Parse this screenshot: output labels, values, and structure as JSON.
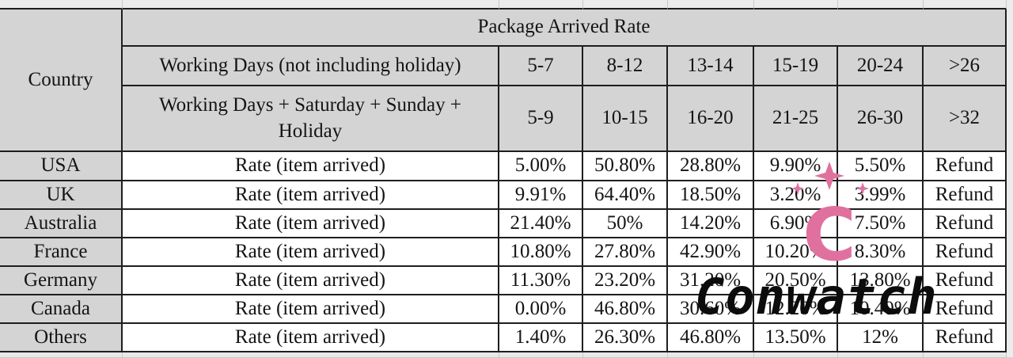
{
  "table": {
    "title": "Package Arrived Rate",
    "country_header": "Country",
    "working_days_label": "Working Days (not including holiday)",
    "all_days_label": "Working Days + Saturday + Sunday + Holiday",
    "working_day_ranges": [
      "5-7",
      "8-12",
      "13-14",
      "15-19",
      "20-24",
      ">26"
    ],
    "all_day_ranges": [
      "5-9",
      "10-15",
      "16-20",
      "21-25",
      "26-30",
      ">32"
    ],
    "rows": [
      {
        "country": "USA",
        "metric": "Rate (item arrived)",
        "rates": [
          "5.00%",
          "50.80%",
          "28.80%",
          "9.90%",
          "5.50%",
          "Refund"
        ]
      },
      {
        "country": "UK",
        "metric": "Rate (item arrived)",
        "rates": [
          "9.91%",
          "64.40%",
          "18.50%",
          "3.20%",
          "3.99%",
          "Refund"
        ]
      },
      {
        "country": "Australia",
        "metric": "Rate (item arrived)",
        "rates": [
          "21.40%",
          "50%",
          "14.20%",
          "6.90%",
          "7.50%",
          "Refund"
        ]
      },
      {
        "country": "France",
        "metric": "Rate (item arrived)",
        "rates": [
          "10.80%",
          "27.80%",
          "42.90%",
          "10.20%",
          "8.30%",
          "Refund"
        ]
      },
      {
        "country": "Germany",
        "metric": "Rate (item arrived)",
        "rates": [
          "11.30%",
          "23.20%",
          "31.20%",
          "20.50%",
          "13.80%",
          "Refund"
        ]
      },
      {
        "country": "Canada",
        "metric": "Rate (item arrived)",
        "rates": [
          "0.00%",
          "46.80%",
          "30.60%",
          "12.20%",
          "10.40%",
          "Refund"
        ]
      },
      {
        "country": "Others",
        "metric": "Rate (item arrived)",
        "rates": [
          "1.40%",
          "26.30%",
          "46.80%",
          "13.50%",
          "12%",
          "Refund"
        ]
      }
    ]
  },
  "watermark": {
    "brand": "Conwatch",
    "logo_letter": "C",
    "logo_color": "#e0719f"
  }
}
